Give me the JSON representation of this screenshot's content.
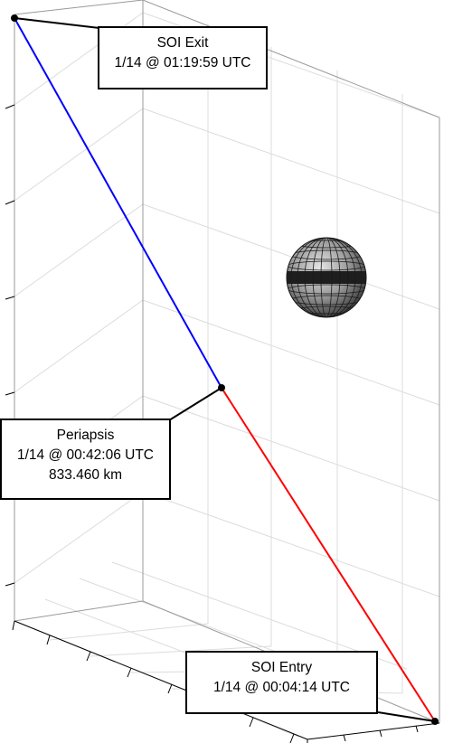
{
  "plot": {
    "colors": {
      "inbound_leg": "#ff0000",
      "outbound_leg": "#0000ff",
      "grid": "#d9d9d9",
      "axes": "#000000"
    }
  },
  "callouts": {
    "soi_exit": {
      "title": "SOI Exit",
      "time": "1/14 @ 01:19:59 UTC"
    },
    "periapsis": {
      "title": "Periapsis",
      "time": "1/14 @ 00:42:06 UTC",
      "altitude": "833.460 km"
    },
    "soi_entry": {
      "title": "SOI Entry",
      "time": "1/14 @ 00:04:14 UTC"
    }
  },
  "body": {
    "icon": "planet-sphere-icon",
    "rendering": "grey shaded wireframe sphere"
  }
}
